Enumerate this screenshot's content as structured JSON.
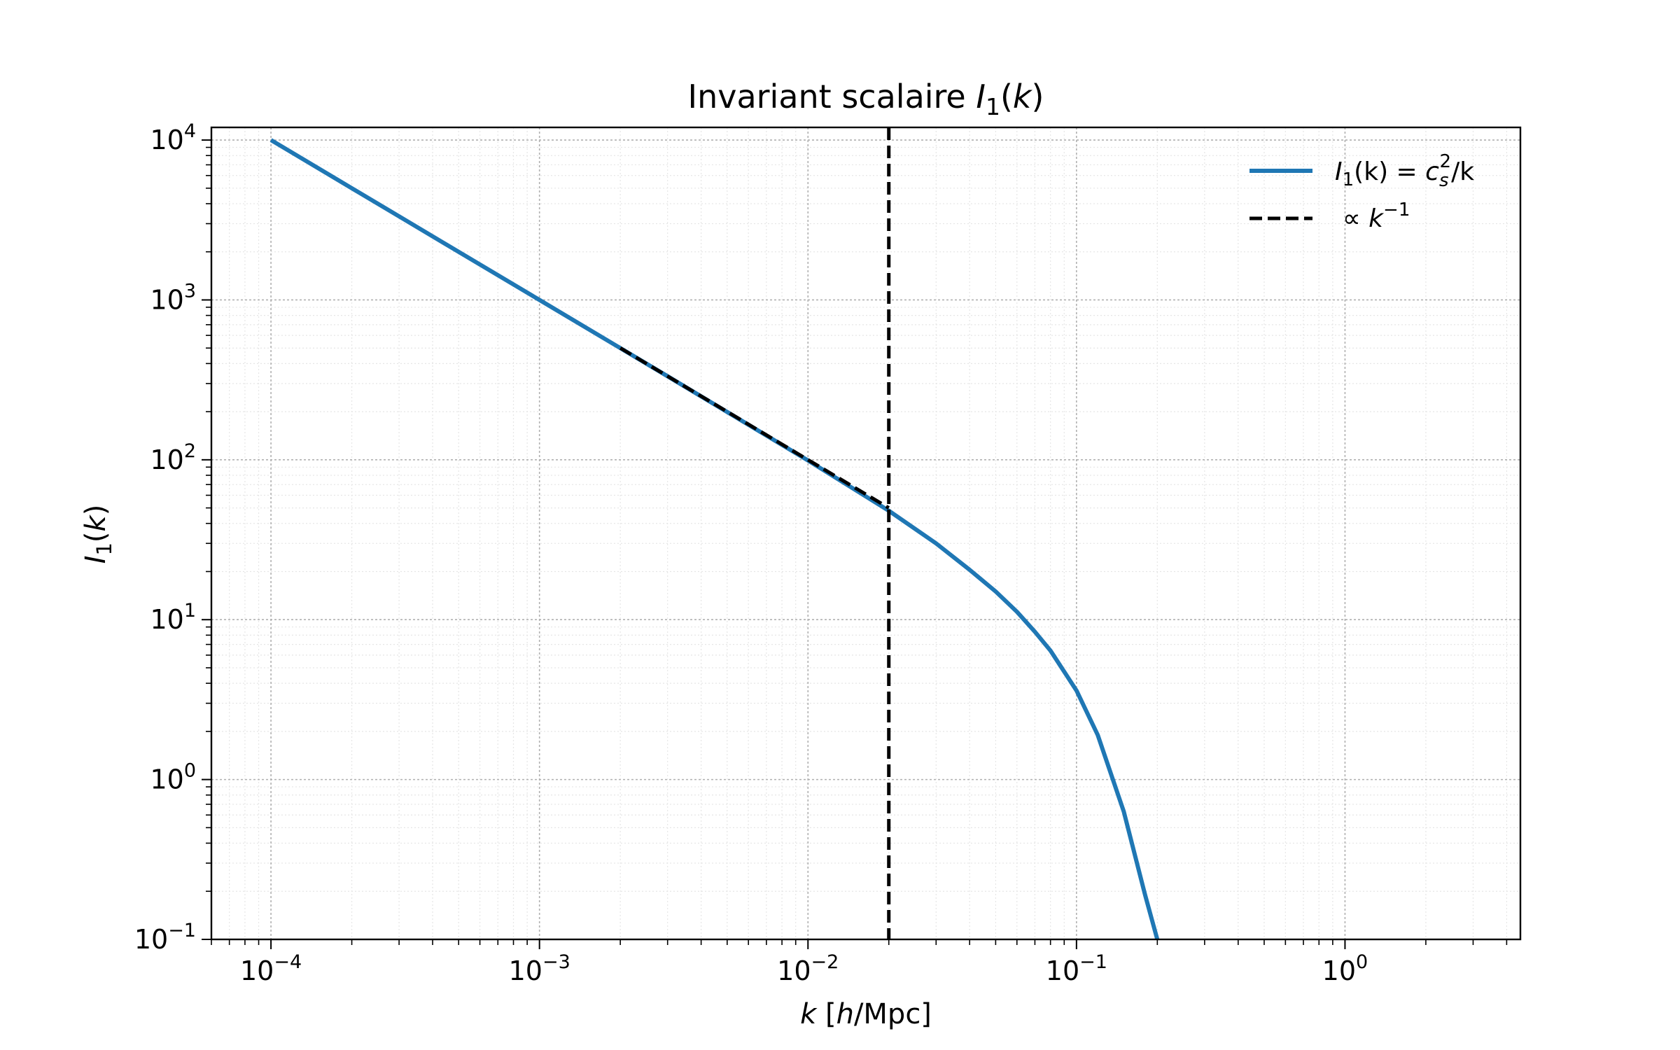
{
  "chart_data": {
    "type": "line",
    "title": {
      "prefix": "Invariant scalaire ",
      "var": "I",
      "sub": "1",
      "suffix": "(",
      "arg": "k",
      "close": ")"
    },
    "xlabel": {
      "var": "k",
      "bracket_open": " [",
      "unit_var": "h",
      "unit_rest": "/Mpc]"
    },
    "ylabel": {
      "var": "I",
      "sub": "1",
      "open": "(",
      "arg": "k",
      "close": ")"
    },
    "x_scale": "log",
    "y_scale": "log",
    "xlim": [
      6e-05,
      4.5
    ],
    "ylim": [
      0.1,
      12000
    ],
    "x_ticks": [
      {
        "value": 0.0001,
        "base": "10",
        "exp": "−4"
      },
      {
        "value": 0.001,
        "base": "10",
        "exp": "−3"
      },
      {
        "value": 0.01,
        "base": "10",
        "exp": "−2"
      },
      {
        "value": 0.1,
        "base": "10",
        "exp": "−1"
      },
      {
        "value": 1,
        "base": "10",
        "exp": "0"
      }
    ],
    "y_ticks": [
      {
        "value": 0.1,
        "base": "10",
        "exp": "−1"
      },
      {
        "value": 1,
        "base": "10",
        "exp": "0"
      },
      {
        "value": 10,
        "base": "10",
        "exp": "1"
      },
      {
        "value": 100,
        "base": "10",
        "exp": "2"
      },
      {
        "value": 1000,
        "base": "10",
        "exp": "3"
      },
      {
        "value": 10000,
        "base": "10",
        "exp": "4"
      }
    ],
    "grid": true,
    "legend_position": "top-right",
    "series": [
      {
        "legend": {
          "var": "I",
          "sub": "1",
          "mid": "(k) = ",
          "c": "c",
          "c_sub": "s",
          "c_sup": "2",
          "tail": "/k"
        },
        "color": "#1f77b4",
        "style": "solid",
        "x": [
          0.0001,
          0.0003,
          0.001,
          0.003,
          0.01,
          0.02,
          0.03,
          0.04,
          0.05,
          0.06,
          0.07,
          0.08,
          0.1,
          0.12,
          0.15,
          0.18,
          0.2
        ],
        "y": [
          10000,
          3333,
          1000,
          333,
          99,
          48,
          30,
          20.5,
          15,
          11.2,
          8.4,
          6.4,
          3.6,
          1.9,
          0.63,
          0.19,
          0.1
        ]
      },
      {
        "legend": {
          "prefix": "∝ ",
          "var": "k",
          "sup": "−1"
        },
        "color": "#000000",
        "style": "dashed",
        "x": [
          0.002,
          0.02
        ],
        "y": [
          500,
          50
        ]
      }
    ],
    "annotations": [
      {
        "type": "vertical-line",
        "x": 0.02,
        "color": "#000000",
        "style": "dashed"
      }
    ]
  }
}
